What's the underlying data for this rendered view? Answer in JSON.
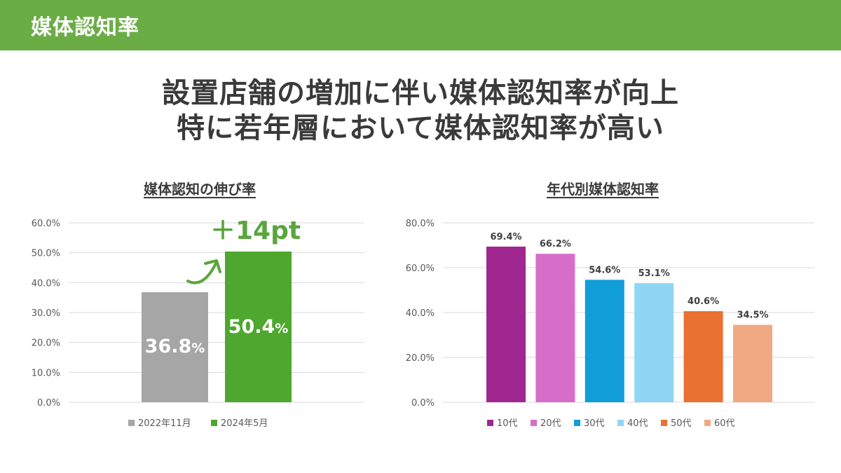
{
  "header": {
    "title": "媒体認知率",
    "bg_color": "#6aad45"
  },
  "headline": {
    "line1": "設置店舗の増加に伴い媒体認知率が向上",
    "line2": "特に若年層において媒体認知率が高い"
  },
  "chart_data": [
    {
      "type": "bar",
      "title": "媒体認知の伸び率",
      "ylim": [
        0,
        60
      ],
      "yticks": [
        0,
        10,
        20,
        30,
        40,
        50,
        60
      ],
      "ytick_labels": [
        "0.0%",
        "10.0%",
        "20.0%",
        "30.0%",
        "40.0%",
        "50.0%",
        "60.0%"
      ],
      "series": [
        {
          "name": "2022年11月",
          "value": 36.8,
          "label": "36.8",
          "unit": "%",
          "color": "#a6a6a6"
        },
        {
          "name": "2024年5月",
          "value": 50.4,
          "label": "50.4",
          "unit": "%",
          "color": "#4ea72e"
        }
      ],
      "annotation": "＋14pt",
      "grid": true,
      "legend": "bottom"
    },
    {
      "type": "bar",
      "title": "年代別媒体認知率",
      "ylim": [
        0,
        80
      ],
      "yticks": [
        0,
        20,
        40,
        60,
        80
      ],
      "ytick_labels": [
        "0.0%",
        "20.0%",
        "40.0%",
        "60.0%",
        "80.0%"
      ],
      "series": [
        {
          "name": "10代",
          "value": 69.4,
          "label": "69.4%",
          "color": "#a0278f"
        },
        {
          "name": "20代",
          "value": 66.2,
          "label": "66.2%",
          "color": "#d66ec9"
        },
        {
          "name": "30代",
          "value": 54.6,
          "label": "54.6%",
          "color": "#119dd8"
        },
        {
          "name": "40代",
          "value": 53.1,
          "label": "53.1%",
          "color": "#8fd6f4"
        },
        {
          "name": "50代",
          "value": 40.6,
          "label": "40.6%",
          "color": "#e97132"
        },
        {
          "name": "60代",
          "value": 34.5,
          "label": "34.5%",
          "color": "#f1a983"
        }
      ],
      "grid": true,
      "legend": "bottom"
    }
  ]
}
